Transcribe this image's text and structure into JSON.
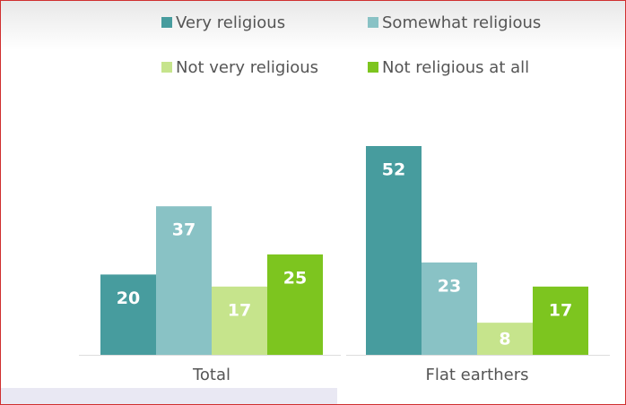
{
  "chart_data": {
    "type": "bar",
    "categories": [
      "Total",
      "Flat earthers"
    ],
    "series": [
      {
        "name": "Very religious",
        "color": "#479c9e",
        "values": [
          20,
          52
        ]
      },
      {
        "name": "Somewhat religious",
        "color": "#89c2c5",
        "values": [
          37,
          23
        ]
      },
      {
        "name": "Not very religious",
        "color": "#c6e48c",
        "values": [
          17,
          8
        ]
      },
      {
        "name": "Not religious at all",
        "color": "#7dc51f",
        "values": [
          25,
          17
        ]
      }
    ]
  }
}
